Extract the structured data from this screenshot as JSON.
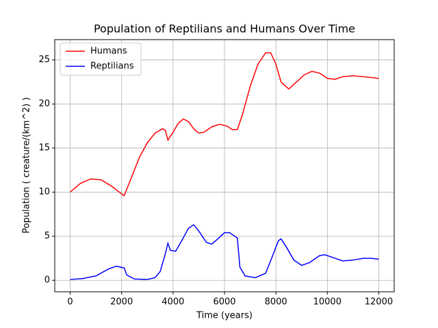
{
  "chart_data": {
    "type": "line",
    "title": "Population of Reptilians and Humans Over Time",
    "xlabel": "Time (years)",
    "ylabel": "Population ( creature/(km^2) )",
    "xlim": [
      -600,
      12600
    ],
    "ylim": [
      -1.3,
      27.3
    ],
    "xticks": [
      0,
      2000,
      4000,
      6000,
      8000,
      10000,
      12000
    ],
    "yticks": [
      0,
      5,
      10,
      15,
      20,
      25
    ],
    "grid": true,
    "legend": "upper-left",
    "series": [
      {
        "name": "Humans",
        "color": "#ff0000",
        "x": [
          0,
          400,
          800,
          1200,
          1600,
          2000,
          2100,
          2400,
          2700,
          3000,
          3300,
          3600,
          3700,
          3800,
          4000,
          4200,
          4400,
          4600,
          4800,
          5000,
          5200,
          5500,
          5800,
          6100,
          6300,
          6500,
          6700,
          7000,
          7300,
          7600,
          7800,
          8000,
          8200,
          8500,
          8800,
          9100,
          9400,
          9700,
          10000,
          10300,
          10600,
          11000,
          11400,
          12000
        ],
        "values": [
          10,
          11,
          11.5,
          11.4,
          10.7,
          9.8,
          9.6,
          11.8,
          14,
          15.6,
          16.7,
          17.2,
          17,
          15.9,
          16.8,
          17.8,
          18.3,
          18,
          17.2,
          16.7,
          16.8,
          17.4,
          17.7,
          17.5,
          17.1,
          17.1,
          18.8,
          22,
          24.5,
          25.8,
          25.8,
          24.5,
          22.5,
          21.7,
          22.5,
          23.3,
          23.7,
          23.5,
          22.9,
          22.8,
          23.1,
          23.2,
          23.1,
          22.9
        ]
      },
      {
        "name": "Reptilians",
        "color": "#0000ff",
        "x": [
          0,
          500,
          1000,
          1500,
          1800,
          2100,
          2200,
          2500,
          3000,
          3300,
          3500,
          3700,
          3800,
          3900,
          4100,
          4300,
          4600,
          4800,
          5000,
          5300,
          5500,
          5700,
          6000,
          6200,
          6500,
          6600,
          6800,
          7200,
          7600,
          7900,
          8100,
          8200,
          8400,
          8700,
          9000,
          9300,
          9700,
          9900,
          10200,
          10600,
          11000,
          11400,
          11700,
          12000
        ],
        "values": [
          0.1,
          0.2,
          0.5,
          1.3,
          1.6,
          1.4,
          0.6,
          0.15,
          0.1,
          0.3,
          1,
          3,
          4.2,
          3.4,
          3.3,
          4.3,
          5.9,
          6.3,
          5.6,
          4.3,
          4.1,
          4.6,
          5.4,
          5.4,
          4.8,
          1.5,
          0.5,
          0.3,
          0.8,
          3,
          4.5,
          4.7,
          3.8,
          2.3,
          1.7,
          2,
          2.8,
          2.9,
          2.6,
          2.2,
          2.3,
          2.5,
          2.5,
          2.4
        ]
      }
    ]
  }
}
